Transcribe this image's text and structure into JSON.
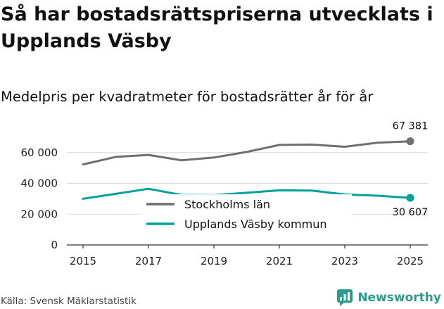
{
  "header": {
    "title": "Så har bostadsrättspriserna utvecklats i Upplands Väsby",
    "subtitle": "Medelpris per kvadratmeter för bostadsrätter år för år"
  },
  "footer": {
    "source": "Källa: Svensk Mäklarstatistik",
    "brand": "Newsworthy",
    "brand_icon": "newsworthy-logo-icon"
  },
  "colors": {
    "stockholm": "#6e6e73",
    "vasby": "#00a19a",
    "grid": "#d9d9d9",
    "axis": "#333333",
    "brand": "#2a9d8f"
  },
  "chart_data": {
    "type": "line",
    "title": "Så har bostadsrättspriserna utvecklats i Upplands Väsby",
    "subtitle": "Medelpris per kvadratmeter för bostadsrätter år för år",
    "xlabel": "",
    "ylabel": "",
    "x": [
      2015,
      2016,
      2017,
      2018,
      2019,
      2020,
      2021,
      2022,
      2023,
      2024,
      2025
    ],
    "xticks": [
      2015,
      2017,
      2019,
      2021,
      2023,
      2025
    ],
    "xtick_labels": [
      "2015",
      "2017",
      "2019",
      "2021",
      "2023",
      "2025"
    ],
    "yticks": [
      0,
      20000,
      40000,
      60000
    ],
    "ytick_labels": [
      "0",
      "20 000",
      "40 000",
      "60 000"
    ],
    "ylim": [
      0,
      75000
    ],
    "grid": true,
    "legend_position": "center",
    "series": [
      {
        "name": "Stockholms län",
        "color": "#6e6e73",
        "values": [
          52300,
          57200,
          58500,
          55000,
          56800,
          60400,
          65000,
          65200,
          63800,
          66400,
          67381
        ],
        "end_label": "67 381"
      },
      {
        "name": "Upplands Väsby kommun",
        "color": "#00a19a",
        "values": [
          30000,
          33200,
          36500,
          32500,
          32400,
          33900,
          35500,
          35300,
          32800,
          32000,
          30607
        ],
        "end_label": "30 607"
      }
    ]
  }
}
